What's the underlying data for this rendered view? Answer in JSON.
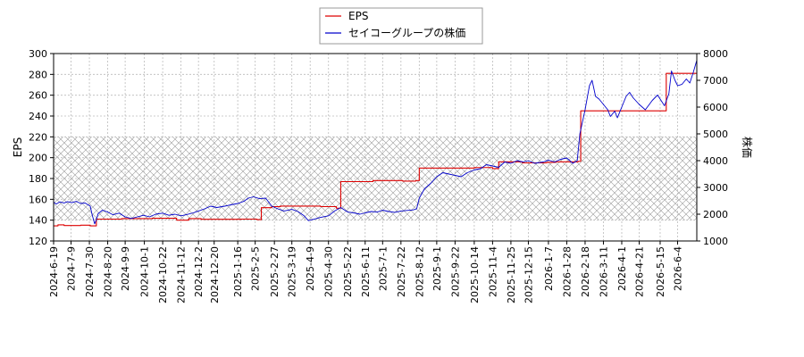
{
  "chart_data": {
    "type": "line",
    "ylabel_left": "EPS",
    "ylabel_right": "株価",
    "ylim_left": [
      120,
      300
    ],
    "ylim_right": [
      1000,
      8000
    ],
    "yticks_left": [
      120,
      140,
      160,
      180,
      200,
      220,
      240,
      260,
      280,
      300
    ],
    "yticks_right": [
      1000,
      2000,
      3000,
      4000,
      5000,
      6000,
      7000,
      8000
    ],
    "xlim": [
      "2024-06-19",
      "2026-06-26"
    ],
    "x_tick_labels": [
      "2024-6-19",
      "2024-7-9",
      "2024-7-30",
      "2024-8-20",
      "2024-9-9",
      "2024-10-1",
      "2024-10-22",
      "2024-11-12",
      "2024-12-2",
      "2024-12-20",
      "2025-1-16",
      "2025-2-5",
      "2025-2-27",
      "2025-3-19",
      "2025-4-9",
      "2025-4-30",
      "2025-5-22",
      "2025-6-11",
      "2025-7-1",
      "2025-7-22",
      "2025-8-12",
      "2025-9-1",
      "2025-9-22",
      "2025-10-14",
      "2025-11-4",
      "2025-11-25",
      "2025-12-15",
      "2026-1-7",
      "2026-1-28",
      "2026-2-18",
      "2026-3-11",
      "2026-4-1",
      "2026-4-21",
      "2026-5-15",
      "2026-6-4"
    ],
    "x_tick_dates": [
      "2024-06-19",
      "2024-07-09",
      "2024-07-30",
      "2024-08-20",
      "2024-09-09",
      "2024-10-01",
      "2024-10-22",
      "2024-11-12",
      "2024-12-02",
      "2024-12-20",
      "2025-01-16",
      "2025-02-05",
      "2025-02-27",
      "2025-03-19",
      "2025-04-09",
      "2025-04-30",
      "2025-05-22",
      "2025-06-11",
      "2025-07-01",
      "2025-07-22",
      "2025-08-12",
      "2025-09-01",
      "2025-09-22",
      "2025-10-14",
      "2025-11-04",
      "2025-11-25",
      "2025-12-15",
      "2026-01-07",
      "2026-01-28",
      "2026-02-18",
      "2026-03-11",
      "2026-04-01",
      "2026-04-21",
      "2026-05-15",
      "2026-06-04"
    ],
    "hatched_band_left": [
      140,
      220
    ],
    "grid": true,
    "legend_position": "top-center",
    "series": [
      {
        "name": "EPS",
        "axis": "left",
        "color": "#dd0000",
        "step": true,
        "points": [
          [
            "2024-06-19",
            134.5
          ],
          [
            "2024-06-24",
            135.5
          ],
          [
            "2024-07-01",
            134.8
          ],
          [
            "2024-07-20",
            135.2
          ],
          [
            "2024-07-31",
            134.5
          ],
          [
            "2024-08-07",
            141.0
          ],
          [
            "2024-09-05",
            141.5
          ],
          [
            "2024-10-10",
            141.8
          ],
          [
            "2024-11-07",
            140.0
          ],
          [
            "2024-11-21",
            141.5
          ],
          [
            "2024-12-05",
            140.8
          ],
          [
            "2025-01-20",
            141.0
          ],
          [
            "2025-02-07",
            140.5
          ],
          [
            "2025-02-12",
            152.0
          ],
          [
            "2025-02-24",
            153.0
          ],
          [
            "2025-03-06",
            153.5
          ],
          [
            "2025-04-21",
            153.0
          ],
          [
            "2025-05-09",
            151.5
          ],
          [
            "2025-05-14",
            177.0
          ],
          [
            "2025-06-20",
            178.0
          ],
          [
            "2025-07-24",
            177.5
          ],
          [
            "2025-08-08",
            178.0
          ],
          [
            "2025-08-12",
            190.0
          ],
          [
            "2025-10-14",
            190.5
          ],
          [
            "2025-11-04",
            189.5
          ],
          [
            "2025-11-11",
            196.0
          ],
          [
            "2025-12-08",
            195.0
          ],
          [
            "2026-01-05",
            195.5
          ],
          [
            "2026-01-15",
            196.0
          ],
          [
            "2026-02-10",
            196.5
          ],
          [
            "2026-02-13",
            245.0
          ],
          [
            "2026-04-01",
            245.0
          ],
          [
            "2026-05-20",
            245.0
          ],
          [
            "2026-05-22",
            281.0
          ],
          [
            "2026-06-26",
            281.0
          ]
        ]
      },
      {
        "name": "セイコーグループの株価",
        "axis": "right",
        "color": "#0000cc",
        "step": false,
        "points": [
          [
            "2024-06-19",
            2450
          ],
          [
            "2024-06-22",
            2380
          ],
          [
            "2024-06-26",
            2460
          ],
          [
            "2024-07-01",
            2420
          ],
          [
            "2024-07-05",
            2470
          ],
          [
            "2024-07-10",
            2430
          ],
          [
            "2024-07-15",
            2480
          ],
          [
            "2024-07-20",
            2400
          ],
          [
            "2024-07-25",
            2420
          ],
          [
            "2024-07-31",
            2300
          ],
          [
            "2024-08-02",
            2000
          ],
          [
            "2024-08-05",
            1640
          ],
          [
            "2024-08-07",
            1800
          ],
          [
            "2024-08-09",
            2020
          ],
          [
            "2024-08-14",
            2150
          ],
          [
            "2024-08-20",
            2080
          ],
          [
            "2024-08-26",
            1980
          ],
          [
            "2024-09-02",
            2040
          ],
          [
            "2024-09-09",
            1900
          ],
          [
            "2024-09-16",
            1840
          ],
          [
            "2024-09-23",
            1900
          ],
          [
            "2024-09-30",
            1960
          ],
          [
            "2024-10-07",
            1900
          ],
          [
            "2024-10-14",
            2000
          ],
          [
            "2024-10-22",
            2040
          ],
          [
            "2024-10-29",
            1960
          ],
          [
            "2024-11-05",
            2000
          ],
          [
            "2024-11-12",
            1940
          ],
          [
            "2024-11-19",
            1990
          ],
          [
            "2024-11-26",
            2050
          ],
          [
            "2024-12-02",
            2120
          ],
          [
            "2024-12-09",
            2200
          ],
          [
            "2024-12-16",
            2300
          ],
          [
            "2024-12-23",
            2250
          ],
          [
            "2025-01-01",
            2300
          ],
          [
            "2025-01-08",
            2350
          ],
          [
            "2025-01-16",
            2400
          ],
          [
            "2025-01-23",
            2480
          ],
          [
            "2025-01-28",
            2600
          ],
          [
            "2025-02-03",
            2650
          ],
          [
            "2025-02-10",
            2580
          ],
          [
            "2025-02-17",
            2600
          ],
          [
            "2025-02-24",
            2300
          ],
          [
            "2025-03-03",
            2200
          ],
          [
            "2025-03-10",
            2120
          ],
          [
            "2025-03-19",
            2180
          ],
          [
            "2025-03-26",
            2100
          ],
          [
            "2025-04-02",
            1940
          ],
          [
            "2025-04-07",
            1760
          ],
          [
            "2025-04-14",
            1820
          ],
          [
            "2025-04-21",
            1880
          ],
          [
            "2025-04-30",
            1940
          ],
          [
            "2025-05-07",
            2120
          ],
          [
            "2025-05-14",
            2250
          ],
          [
            "2025-05-22",
            2080
          ],
          [
            "2025-05-29",
            2050
          ],
          [
            "2025-06-05",
            2000
          ],
          [
            "2025-06-11",
            2050
          ],
          [
            "2025-06-18",
            2100
          ],
          [
            "2025-06-25",
            2080
          ],
          [
            "2025-07-01",
            2150
          ],
          [
            "2025-07-08",
            2100
          ],
          [
            "2025-07-15",
            2070
          ],
          [
            "2025-07-22",
            2120
          ],
          [
            "2025-07-29",
            2140
          ],
          [
            "2025-08-05",
            2160
          ],
          [
            "2025-08-09",
            2200
          ],
          [
            "2025-08-12",
            2600
          ],
          [
            "2025-08-18",
            2950
          ],
          [
            "2025-08-25",
            3150
          ],
          [
            "2025-09-01",
            3400
          ],
          [
            "2025-09-08",
            3550
          ],
          [
            "2025-09-15",
            3500
          ],
          [
            "2025-09-22",
            3450
          ],
          [
            "2025-09-29",
            3400
          ],
          [
            "2025-10-06",
            3550
          ],
          [
            "2025-10-14",
            3650
          ],
          [
            "2025-10-21",
            3700
          ],
          [
            "2025-10-28",
            3850
          ],
          [
            "2025-11-04",
            3800
          ],
          [
            "2025-11-11",
            3750
          ],
          [
            "2025-11-18",
            3950
          ],
          [
            "2025-11-25",
            3900
          ],
          [
            "2025-12-02",
            4000
          ],
          [
            "2025-12-09",
            3950
          ],
          [
            "2025-12-15",
            4000
          ],
          [
            "2025-12-22",
            3900
          ],
          [
            "2026-01-01",
            3950
          ],
          [
            "2026-01-07",
            4020
          ],
          [
            "2026-01-14",
            3950
          ],
          [
            "2026-01-21",
            4050
          ],
          [
            "2026-01-28",
            4100
          ],
          [
            "2026-02-04",
            3900
          ],
          [
            "2026-02-09",
            4000
          ],
          [
            "2026-02-12",
            5000
          ],
          [
            "2026-02-18",
            5900
          ],
          [
            "2026-02-23",
            6800
          ],
          [
            "2026-02-26",
            7000
          ],
          [
            "2026-03-02",
            6400
          ],
          [
            "2026-03-06",
            6300
          ],
          [
            "2026-03-11",
            6100
          ],
          [
            "2026-03-16",
            5900
          ],
          [
            "2026-03-19",
            5650
          ],
          [
            "2026-03-24",
            5850
          ],
          [
            "2026-03-27",
            5600
          ],
          [
            "2026-04-01",
            6000
          ],
          [
            "2026-04-06",
            6400
          ],
          [
            "2026-04-10",
            6550
          ],
          [
            "2026-04-14",
            6350
          ],
          [
            "2026-04-21",
            6100
          ],
          [
            "2026-04-28",
            5900
          ],
          [
            "2026-05-06",
            6250
          ],
          [
            "2026-05-12",
            6450
          ],
          [
            "2026-05-15",
            6300
          ],
          [
            "2026-05-20",
            6050
          ],
          [
            "2026-05-25",
            6500
          ],
          [
            "2026-05-28",
            7350
          ],
          [
            "2026-06-01",
            7000
          ],
          [
            "2026-06-04",
            6800
          ],
          [
            "2026-06-09",
            6850
          ],
          [
            "2026-06-14",
            7050
          ],
          [
            "2026-06-18",
            6900
          ],
          [
            "2026-06-22",
            7300
          ],
          [
            "2026-06-26",
            7750
          ]
        ]
      }
    ]
  }
}
